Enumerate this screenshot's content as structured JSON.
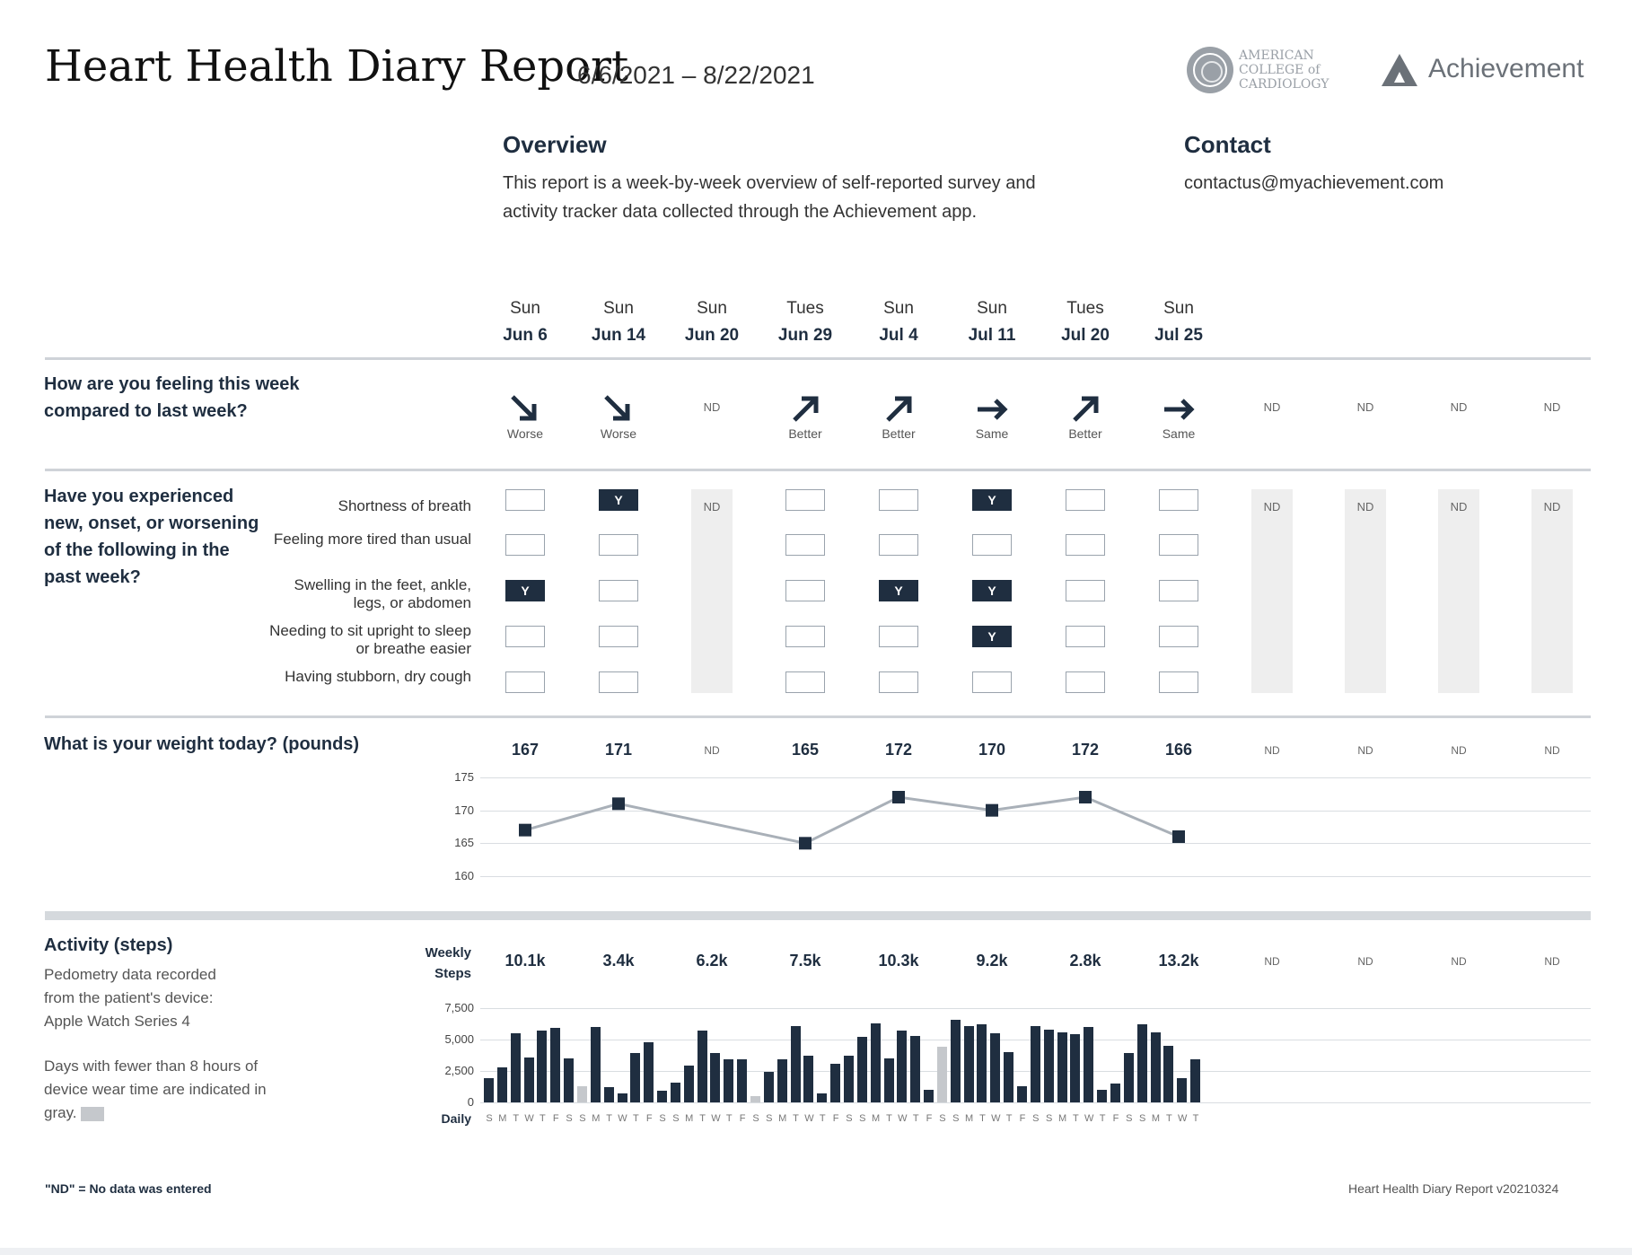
{
  "header": {
    "title": "Heart Health Diary Report",
    "date_range": "6/6/2021 – 8/22/2021",
    "acc_logo_text": "AMERICAN\nCOLLEGE of\nCARDIOLOGY",
    "brand": "Achievement"
  },
  "overview": {
    "heading": "Overview",
    "text": "This report is a week-by-week overview of self-reported survey and activity tracker data collected through the Achievement app."
  },
  "contact": {
    "heading": "Contact",
    "email": "contactus@myachievement.com"
  },
  "weeks": [
    {
      "day": "Sun",
      "date": "Jun 6"
    },
    {
      "day": "Sun",
      "date": "Jun 14"
    },
    {
      "day": "Sun",
      "date": "Jun 20"
    },
    {
      "day": "Tues",
      "date": "Jun 29"
    },
    {
      "day": "Sun",
      "date": "Jul 4"
    },
    {
      "day": "Sun",
      "date": "Jul 11"
    },
    {
      "day": "Tues",
      "date": "Jul 20"
    },
    {
      "day": "Sun",
      "date": "Jul 25"
    }
  ],
  "nd_label": "ND",
  "feeling": {
    "question": "How are you feeling this week compared to last week?",
    "values": [
      "Worse",
      "Worse",
      "ND",
      "Better",
      "Better",
      "Same",
      "Better",
      "Same",
      "ND",
      "ND",
      "ND",
      "ND"
    ]
  },
  "symptoms": {
    "question": "Have you experienced new, onset, or worsening of the following in the past week?",
    "items": [
      "Shortness of breath",
      "Feeling more tired than usual",
      "Swelling in the feet, ankle, legs, or abdomen",
      "Needing to sit upright to sleep or breathe easier",
      "Having stubborn, dry cough"
    ],
    "check_mark": "Y",
    "matrix": [
      [
        false,
        true,
        null,
        false,
        false,
        true,
        false,
        false,
        null,
        null,
        null,
        null
      ],
      [
        false,
        false,
        null,
        false,
        false,
        false,
        false,
        false,
        null,
        null,
        null,
        null
      ],
      [
        true,
        false,
        null,
        false,
        true,
        true,
        false,
        false,
        null,
        null,
        null,
        null
      ],
      [
        false,
        false,
        null,
        false,
        false,
        true,
        false,
        false,
        null,
        null,
        null,
        null
      ],
      [
        false,
        false,
        null,
        false,
        false,
        false,
        false,
        false,
        null,
        null,
        null,
        null
      ]
    ]
  },
  "weight": {
    "question": "What is your weight today? (pounds)",
    "values": [
      "167",
      "171",
      "ND",
      "165",
      "172",
      "170",
      "172",
      "166",
      "ND",
      "ND",
      "ND",
      "ND"
    ],
    "ticks": [
      "175",
      "170",
      "165",
      "160"
    ]
  },
  "activity": {
    "heading": "Activity (steps)",
    "note1": "Pedometry data recorded from the patient's device: Apple Watch Series 4",
    "note2": "Days with fewer than 8 hours of device wear time are indicated in gray.",
    "weekly_label": "Weekly Steps",
    "daily_label": "Daily",
    "weekly_values": [
      "10.1k",
      "3.4k",
      "6.2k",
      "7.5k",
      "10.3k",
      "9.2k",
      "2.8k",
      "13.2k",
      "ND",
      "ND",
      "ND",
      "ND"
    ],
    "ticks": [
      "7,500",
      "5,000",
      "2,500",
      "0"
    ],
    "day_letters": [
      "S",
      "M",
      "T",
      "W",
      "T",
      "F",
      "S"
    ]
  },
  "footer": {
    "nd_note": "\"ND\" = No data was entered",
    "version": "Heart Health Diary Report v20210324"
  },
  "colors": {
    "navy": "#1f2e40",
    "gray_bar": "#c5c8cc",
    "line": "#a9b0b8"
  },
  "chart_data": [
    {
      "type": "line",
      "title": "What is your weight today? (pounds)",
      "categories": [
        "Jun 6",
        "Jun 14",
        "Jun 20",
        "Jun 29",
        "Jul 4",
        "Jul 11",
        "Jul 20",
        "Jul 25"
      ],
      "values": [
        167,
        171,
        null,
        165,
        172,
        170,
        172,
        166
      ],
      "ylim": [
        160,
        175
      ],
      "yticks": [
        175,
        170,
        165,
        160
      ]
    },
    {
      "type": "bar",
      "title": "Activity (steps)",
      "xlabel": "Daily",
      "ylim": [
        0,
        7500
      ],
      "yticks": [
        7500,
        5000,
        2500,
        0
      ],
      "values": [
        1900,
        2800,
        5500,
        3600,
        5700,
        5900,
        3500,
        1300,
        6000,
        1200,
        700,
        3900,
        4800,
        900,
        1600,
        2900,
        5700,
        3900,
        3400,
        3400,
        500,
        2400,
        3400,
        6100,
        3700,
        700,
        3100,
        3700,
        5200,
        6300,
        3500,
        5700,
        5300,
        1000,
        4400,
        6600,
        6100,
        6200,
        5500,
        4000,
        1300,
        6100,
        5800,
        5600,
        5400,
        6000,
        1000,
        1500,
        3900,
        6200,
        5600,
        4500,
        1900,
        3400
      ],
      "low_wear_days": [
        7,
        20,
        34
      ]
    }
  ]
}
